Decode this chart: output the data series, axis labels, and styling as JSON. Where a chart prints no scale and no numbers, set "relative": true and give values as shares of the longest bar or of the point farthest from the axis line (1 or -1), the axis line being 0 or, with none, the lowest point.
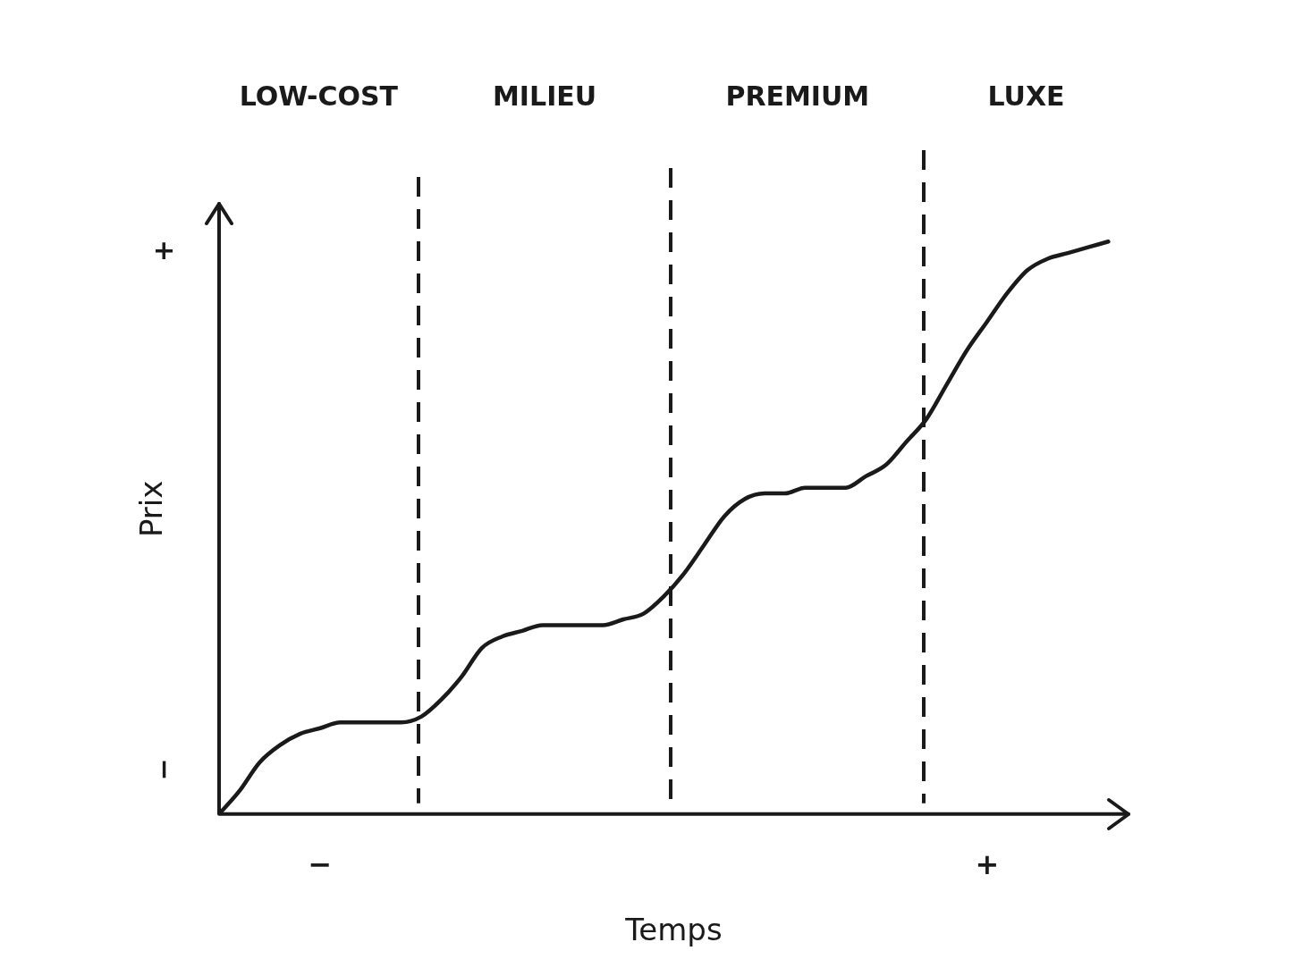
{
  "chart_data": {
    "type": "line",
    "relative": true,
    "xlabel": "Temps",
    "ylabel": "Prix",
    "categories": [
      null,
      null,
      null,
      null,
      null,
      "−",
      null,
      null,
      null,
      null,
      null,
      null,
      null,
      null,
      null,
      null,
      null,
      null,
      null,
      null,
      null,
      null,
      null,
      null,
      null,
      null,
      null,
      null,
      null,
      null,
      null,
      null,
      null,
      null,
      null,
      null,
      null,
      null,
      "+",
      null,
      null,
      null,
      null,
      null,
      null,
      null
    ],
    "values": [
      0,
      0.04,
      0.09,
      0.12,
      0.14,
      0.15,
      0.16,
      0.16,
      0.16,
      0.16,
      0.17,
      0.2,
      0.24,
      0.29,
      0.31,
      0.32,
      0.33,
      0.33,
      0.33,
      0.33,
      0.34,
      0.35,
      0.38,
      0.42,
      0.47,
      0.52,
      0.55,
      0.56,
      0.56,
      0.57,
      0.57,
      0.57,
      0.59,
      0.61,
      0.65,
      0.69,
      0.75,
      0.81,
      0.86,
      0.91,
      0.95,
      0.97,
      0.98,
      0.99,
      1,
      null
    ],
    "color": "#1a1a1a",
    "annotations": [
      "LOW-COST",
      "MILIEU",
      "PREMIUM",
      "LUXE",
      "+",
      "−"
    ]
  }
}
